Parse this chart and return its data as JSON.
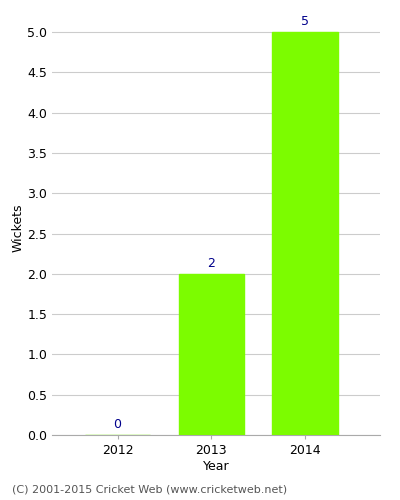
{
  "years": [
    2012,
    2013,
    2014
  ],
  "wickets": [
    0,
    2,
    5
  ],
  "bar_color": "#7CFC00",
  "bar_edgecolor": "#7CFC00",
  "label_color": "#00008B",
  "xlabel": "Year",
  "ylabel": "Wickets",
  "xlim": [
    2011.3,
    2014.8
  ],
  "ylim": [
    0,
    5.15
  ],
  "yticks": [
    0.0,
    0.5,
    1.0,
    1.5,
    2.0,
    2.5,
    3.0,
    3.5,
    4.0,
    4.5,
    5.0
  ],
  "grid_color": "#cccccc",
  "background_color": "#ffffff",
  "footer_text": "(C) 2001-2015 Cricket Web (www.cricketweb.net)",
  "footer_color": "#555555",
  "label_fontsize": 9,
  "axis_fontsize": 9,
  "footer_fontsize": 8,
  "bar_width": 0.7
}
